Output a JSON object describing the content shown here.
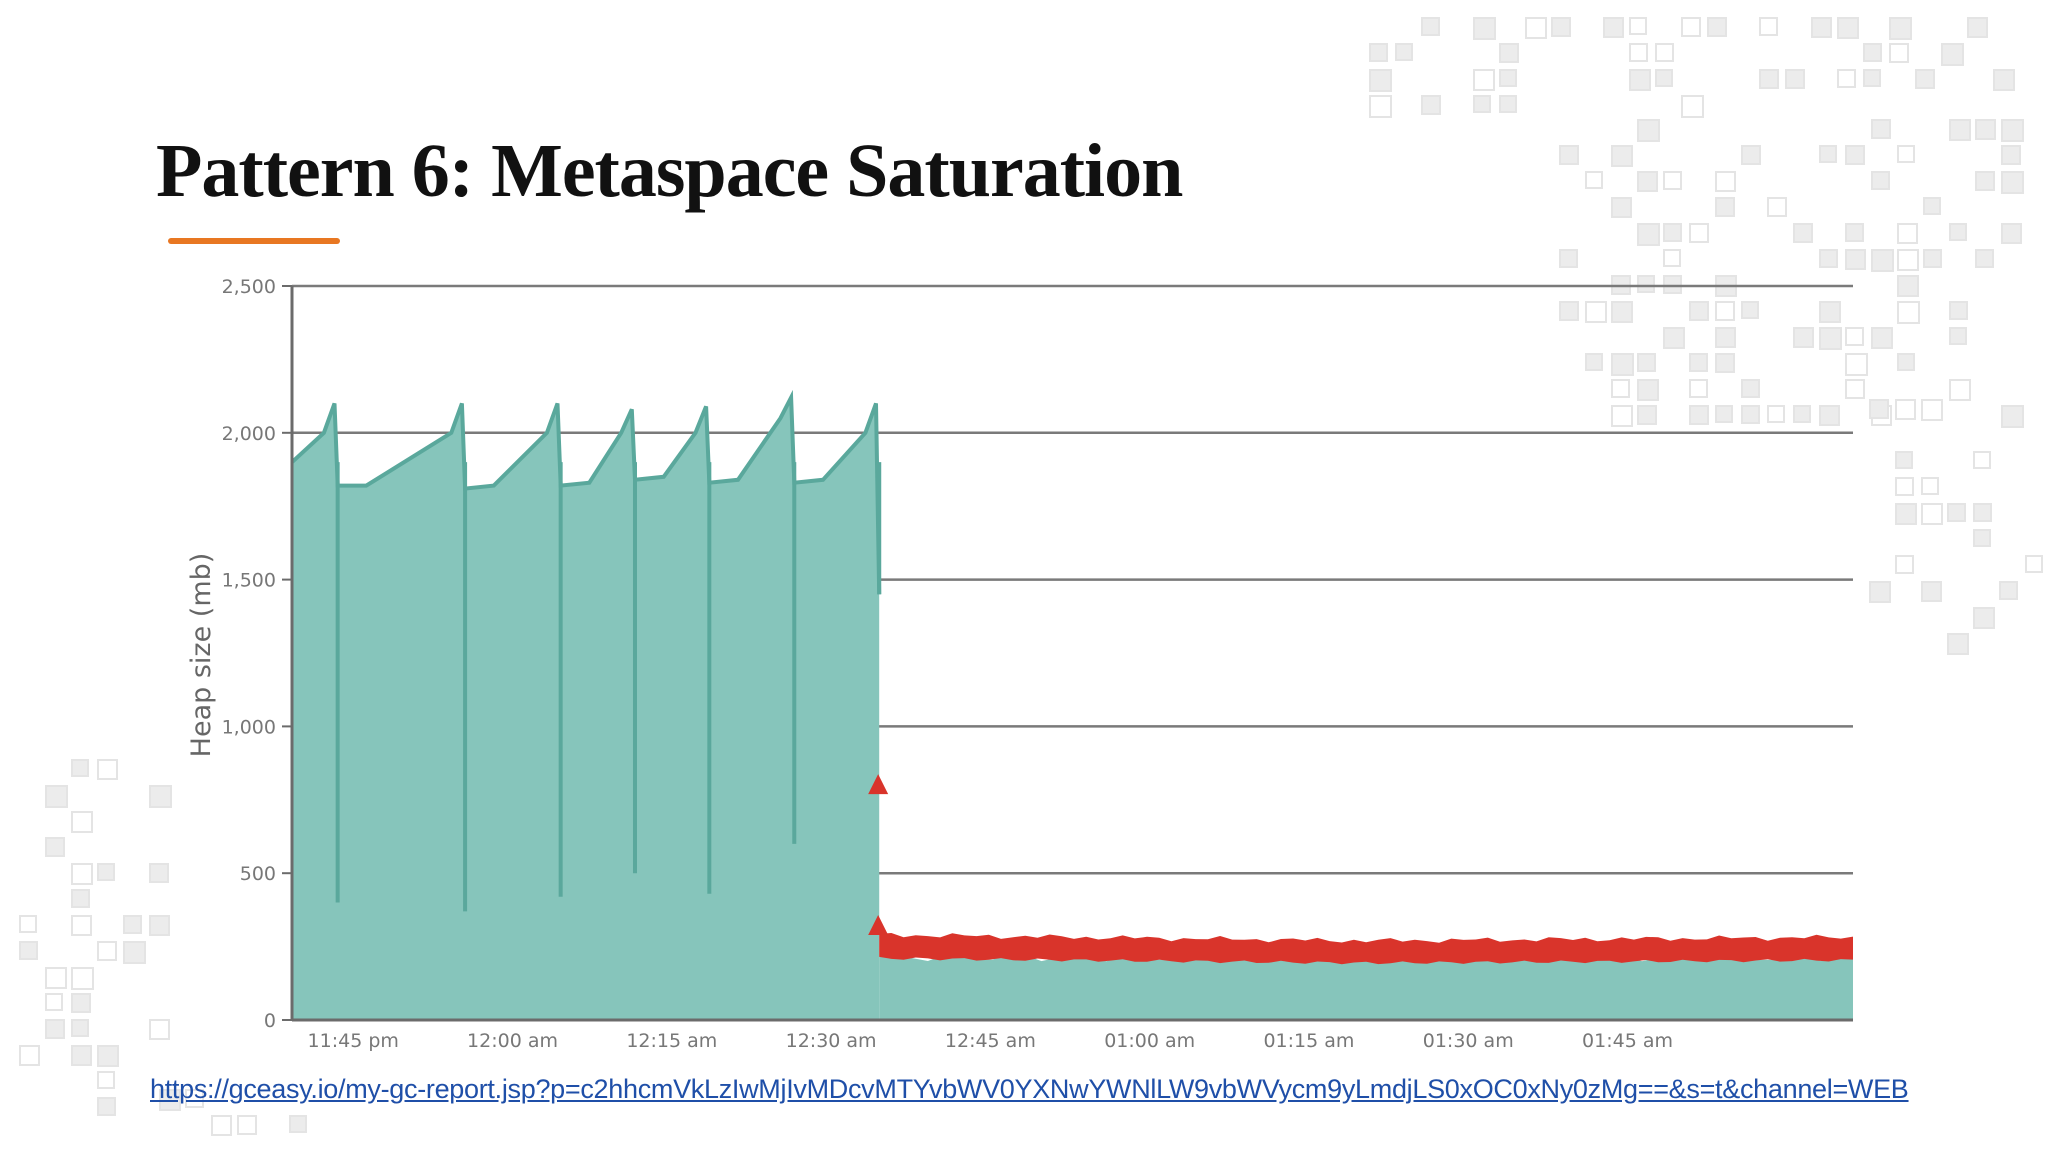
{
  "slide": {
    "title": "Pattern 6: Metaspace Saturation",
    "accent_color": "#e87722",
    "link_text": "https://gceasy.io/my-gc-report.jsp?p=c2hhcmVkLzIwMjIvMDcvMTYvbWV0YXNwYWNlLW9vbWVycm9yLmdjLS0xOC0xNy0zMg==&s=t&channel=WEB",
    "link_color": "#1f4fa8"
  },
  "chart_data": {
    "type": "area",
    "title": "",
    "ylabel": "Heap size (mb)",
    "xlabel": "",
    "ylim": [
      0,
      2500
    ],
    "yticks": [
      0,
      500,
      1000,
      1500,
      2000,
      2500
    ],
    "ytick_labels": [
      "0",
      "500",
      "1,000",
      "1,500",
      "2,000",
      "2,500"
    ],
    "xlim_minutes": [
      -17,
      130
    ],
    "xticks_minutes": [
      -15,
      0,
      15,
      30,
      45,
      60,
      75,
      90,
      105
    ],
    "xtick_labels": [
      "11:45 pm",
      "12:00 am",
      "12:15 am",
      "12:30 am",
      "12:45 am",
      "01:00 am",
      "01:15 am",
      "01:30 am",
      "01:45 am"
    ],
    "grid": true,
    "colors": {
      "heap_area": "#86c5bb",
      "heap_line": "#5aa89c",
      "gc_events": "#d9342b",
      "axis": "#777777"
    },
    "heap_before_oom": [
      [
        -17,
        1900
      ],
      [
        -14,
        2000
      ],
      [
        -13,
        2100
      ],
      [
        -12.7,
        1820
      ],
      [
        -10,
        1820
      ],
      [
        -2,
        2000
      ],
      [
        -1,
        2100
      ],
      [
        -0.7,
        1810
      ],
      [
        2,
        1820
      ],
      [
        7,
        2000
      ],
      [
        8,
        2100
      ],
      [
        8.3,
        1820
      ],
      [
        11,
        1830
      ],
      [
        14,
        2000
      ],
      [
        15,
        2080
      ],
      [
        15.3,
        1840
      ],
      [
        18,
        1850
      ],
      [
        21,
        2000
      ],
      [
        22,
        2090
      ],
      [
        22.3,
        1830
      ],
      [
        25,
        1840
      ],
      [
        29,
        2050
      ],
      [
        30,
        2120
      ],
      [
        30.3,
        1830
      ],
      [
        33,
        1840
      ],
      [
        37,
        2000
      ],
      [
        38,
        2100
      ],
      [
        38.3,
        1450
      ]
    ],
    "heap_after_oom": {
      "x_range": [
        38.3,
        130
      ],
      "value_range": [
        200,
        230
      ]
    },
    "gc_pause_band": {
      "x_range": [
        38.3,
        130
      ],
      "value_range": [
        210,
        290
      ]
    },
    "gc_spike_markers": [
      {
        "x": 38.2,
        "y": 800
      },
      {
        "x": 38.2,
        "y": 320
      }
    ]
  }
}
